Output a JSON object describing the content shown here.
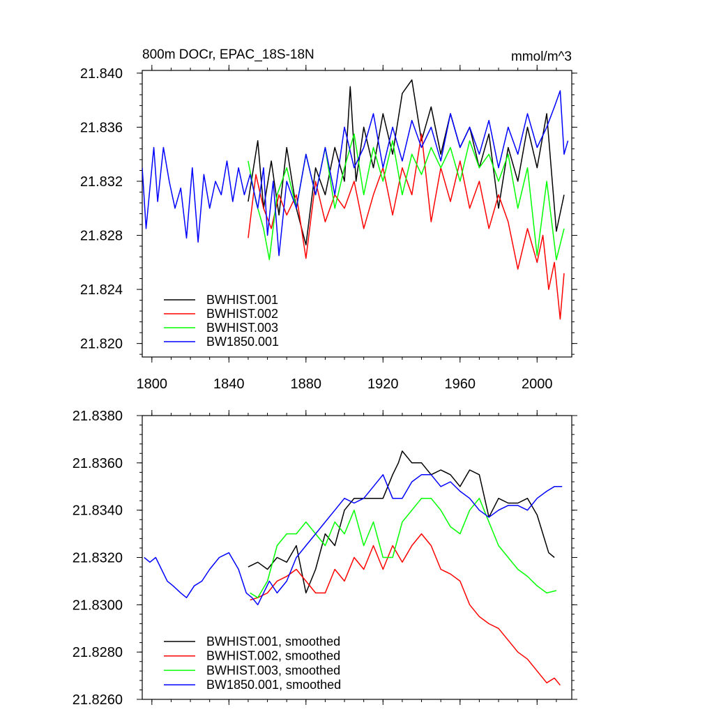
{
  "chart_data": [
    {
      "type": "line",
      "title": "800m DOCr, EPAC_18S-18N",
      "units": "mmol/m^3",
      "xlim": [
        1795,
        2018
      ],
      "ylim": [
        21.819,
        21.8402
      ],
      "xticks": [
        1800,
        1840,
        1880,
        1920,
        1960,
        2000
      ],
      "yticks": [
        21.82,
        21.824,
        21.828,
        21.832,
        21.836,
        21.84
      ],
      "ytick_labels": [
        "21.820",
        "21.824",
        "21.828",
        "21.832",
        "21.836",
        "21.840"
      ],
      "xtick_labels": [
        "1800",
        "1840",
        "1880",
        "1920",
        "1960",
        "2000"
      ],
      "legend_position": "bottom-left",
      "series": [
        {
          "name": "BWHIST.001",
          "color": "#000000",
          "x": [
            1850,
            1855,
            1858,
            1862,
            1866,
            1870,
            1875,
            1880,
            1885,
            1890,
            1895,
            1900,
            1903,
            1906,
            1910,
            1915,
            1920,
            1925,
            1930,
            1935,
            1940,
            1945,
            1950,
            1955,
            1960,
            1965,
            1970,
            1975,
            1980,
            1985,
            1990,
            1995,
            2000,
            2005,
            2010,
            2014
          ],
          "values": [
            21.8305,
            21.835,
            21.83,
            21.8335,
            21.8295,
            21.8345,
            21.83,
            21.8273,
            21.833,
            21.831,
            21.8345,
            21.832,
            21.839,
            21.832,
            21.836,
            21.833,
            21.837,
            21.834,
            21.8385,
            21.8395,
            21.835,
            21.8375,
            21.834,
            21.837,
            21.8345,
            21.836,
            21.833,
            21.8355,
            21.83,
            21.8345,
            21.832,
            21.836,
            21.833,
            21.837,
            21.8283,
            21.831
          ]
        },
        {
          "name": "BWHIST.002",
          "color": "#ff0000",
          "x": [
            1850,
            1854,
            1858,
            1862,
            1866,
            1870,
            1875,
            1880,
            1885,
            1890,
            1895,
            1900,
            1905,
            1910,
            1915,
            1920,
            1925,
            1930,
            1935,
            1940,
            1945,
            1950,
            1955,
            1960,
            1965,
            1970,
            1975,
            1980,
            1985,
            1990,
            1995,
            2000,
            2003,
            2006,
            2009,
            2012,
            2014
          ],
          "values": [
            21.8278,
            21.8325,
            21.83,
            21.8285,
            21.831,
            21.8295,
            21.831,
            21.8263,
            21.832,
            21.829,
            21.831,
            21.83,
            21.832,
            21.8285,
            21.831,
            21.833,
            21.8295,
            21.833,
            21.831,
            21.8355,
            21.829,
            21.833,
            21.8305,
            21.8335,
            21.83,
            21.832,
            21.8285,
            21.831,
            21.829,
            21.8255,
            21.8285,
            21.826,
            21.828,
            21.824,
            21.826,
            21.8218,
            21.8252
          ]
        },
        {
          "name": "BWHIST.003",
          "color": "#00ff00",
          "x": [
            1850,
            1854,
            1858,
            1861,
            1865,
            1870,
            1875,
            1880,
            1885,
            1890,
            1895,
            1900,
            1905,
            1910,
            1915,
            1920,
            1925,
            1930,
            1935,
            1940,
            1945,
            1950,
            1955,
            1960,
            1965,
            1970,
            1975,
            1980,
            1985,
            1990,
            1995,
            2000,
            2005,
            2010,
            2014
          ],
          "values": [
            21.8335,
            21.8305,
            21.8285,
            21.8262,
            21.831,
            21.833,
            21.83,
            21.834,
            21.831,
            21.8345,
            21.83,
            21.833,
            21.8355,
            21.831,
            21.8345,
            21.832,
            21.835,
            21.831,
            21.834,
            21.8325,
            21.8345,
            21.833,
            21.8345,
            21.832,
            21.835,
            21.833,
            21.834,
            21.832,
            21.834,
            21.83,
            21.833,
            21.8265,
            21.832,
            21.8262,
            21.8285
          ]
        },
        {
          "name": "BW1850.001",
          "color": "#0000ff",
          "x": [
            1795,
            1797,
            1799,
            1801,
            1803,
            1806,
            1809,
            1812,
            1815,
            1818,
            1821,
            1824,
            1827,
            1830,
            1833,
            1836,
            1839,
            1842,
            1845,
            1848,
            1851,
            1855,
            1858,
            1860,
            1863,
            1866,
            1870,
            1875,
            1880,
            1885,
            1890,
            1895,
            1900,
            1905,
            1910,
            1915,
            1920,
            1925,
            1930,
            1935,
            1940,
            1945,
            1950,
            1955,
            1960,
            1965,
            1970,
            1975,
            1980,
            1985,
            1990,
            1995,
            2000,
            2005,
            2009,
            2012,
            2014,
            2016
          ],
          "values": [
            21.833,
            21.8285,
            21.8315,
            21.8345,
            21.8305,
            21.8345,
            21.832,
            21.83,
            21.8315,
            21.8278,
            21.833,
            21.8275,
            21.8325,
            21.83,
            21.832,
            21.831,
            21.8335,
            21.8305,
            21.833,
            21.831,
            21.8325,
            21.83,
            21.833,
            21.828,
            21.832,
            21.8265,
            21.832,
            21.83,
            21.834,
            21.831,
            21.8345,
            21.831,
            21.836,
            21.833,
            21.8345,
            21.837,
            21.833,
            21.836,
            21.8335,
            21.8365,
            21.8345,
            21.836,
            21.8335,
            21.837,
            21.8345,
            21.836,
            21.834,
            21.8365,
            21.833,
            21.836,
            21.834,
            21.837,
            21.8345,
            21.836,
            21.8375,
            21.8387,
            21.834,
            21.835
          ]
        }
      ]
    },
    {
      "type": "line",
      "title": "",
      "xlim": [
        1795,
        2018
      ],
      "ylim": [
        21.826,
        21.838
      ],
      "xticks": [
        1800,
        1840,
        1880,
        1920,
        1960,
        2000
      ],
      "yticks": [
        21.826,
        21.828,
        21.83,
        21.832,
        21.834,
        21.836,
        21.838
      ],
      "ytick_labels": [
        "21.8260",
        "21.8280",
        "21.8300",
        "21.8320",
        "21.8340",
        "21.8360",
        "21.8380"
      ],
      "legend_position": "bottom-left",
      "series": [
        {
          "name": "BWHIST.001, smoothed",
          "color": "#000000",
          "x": [
            1850,
            1855,
            1860,
            1865,
            1870,
            1875,
            1880,
            1885,
            1890,
            1895,
            1900,
            1905,
            1910,
            1915,
            1920,
            1925,
            1928,
            1930,
            1935,
            1940,
            1945,
            1950,
            1955,
            1960,
            1965,
            1970,
            1975,
            1980,
            1985,
            1990,
            1995,
            2000,
            2003,
            2006,
            2009
          ],
          "values": [
            21.8316,
            21.8318,
            21.8315,
            21.832,
            21.8318,
            21.8325,
            21.8305,
            21.8315,
            21.833,
            21.8325,
            21.834,
            21.8345,
            21.8345,
            21.8345,
            21.8345,
            21.8355,
            21.836,
            21.8365,
            21.836,
            21.836,
            21.8355,
            21.8357,
            21.8355,
            21.835,
            21.8357,
            21.8355,
            21.8337,
            21.8345,
            21.8343,
            21.8343,
            21.8345,
            21.8338,
            21.833,
            21.8322,
            21.832
          ]
        },
        {
          "name": "BWHIST.002, smoothed",
          "color": "#ff0000",
          "x": [
            1851,
            1855,
            1860,
            1865,
            1870,
            1875,
            1880,
            1885,
            1890,
            1895,
            1900,
            1905,
            1910,
            1915,
            1920,
            1925,
            1930,
            1935,
            1940,
            1945,
            1950,
            1955,
            1960,
            1965,
            1970,
            1975,
            1980,
            1985,
            1990,
            1995,
            2000,
            2005,
            2009,
            2012
          ],
          "values": [
            21.8302,
            21.8303,
            21.8305,
            21.831,
            21.8312,
            21.8315,
            21.831,
            21.8305,
            21.8305,
            21.8315,
            21.831,
            21.832,
            21.8315,
            21.8325,
            21.8315,
            21.8325,
            21.8318,
            21.8325,
            21.833,
            21.8325,
            21.8315,
            21.8313,
            21.831,
            21.83,
            21.8295,
            21.8292,
            21.829,
            21.8285,
            21.828,
            21.8277,
            21.8272,
            21.8267,
            21.8269,
            21.8266
          ]
        },
        {
          "name": "BWHIST.003, smoothed",
          "color": "#00ff00",
          "x": [
            1851,
            1855,
            1860,
            1865,
            1870,
            1875,
            1880,
            1885,
            1890,
            1895,
            1900,
            1905,
            1910,
            1915,
            1920,
            1925,
            1930,
            1935,
            1940,
            1945,
            1950,
            1955,
            1960,
            1965,
            1970,
            1975,
            1980,
            1985,
            1990,
            1995,
            2000,
            2005,
            2010
          ],
          "values": [
            21.8305,
            21.8303,
            21.831,
            21.8325,
            21.833,
            21.833,
            21.8335,
            21.833,
            21.8325,
            21.8335,
            21.833,
            21.834,
            21.8325,
            21.8335,
            21.832,
            21.832,
            21.8335,
            21.834,
            21.8345,
            21.8345,
            21.834,
            21.8333,
            21.833,
            21.834,
            21.8345,
            21.8335,
            21.8325,
            21.832,
            21.8315,
            21.8312,
            21.8308,
            21.8305,
            21.8306
          ]
        },
        {
          "name": "BW1850.001, smoothed",
          "color": "#0000ff",
          "x": [
            1796,
            1799,
            1802,
            1805,
            1808,
            1811,
            1815,
            1818,
            1822,
            1826,
            1830,
            1835,
            1840,
            1845,
            1849,
            1852,
            1855,
            1858,
            1861,
            1865,
            1870,
            1875,
            1880,
            1885,
            1890,
            1895,
            1900,
            1905,
            1910,
            1915,
            1920,
            1925,
            1930,
            1935,
            1940,
            1945,
            1950,
            1955,
            1960,
            1965,
            1970,
            1975,
            1980,
            1985,
            1990,
            1995,
            2000,
            2005,
            2009,
            2013
          ],
          "values": [
            21.832,
            21.8318,
            21.832,
            21.8315,
            21.831,
            21.8308,
            21.8305,
            21.8303,
            21.8308,
            21.831,
            21.8315,
            21.832,
            21.8322,
            21.8315,
            21.8305,
            21.8303,
            21.83,
            21.8305,
            21.831,
            21.8305,
            21.831,
            21.832,
            21.8325,
            21.833,
            21.8335,
            21.834,
            21.8345,
            21.8343,
            21.8345,
            21.835,
            21.8355,
            21.8345,
            21.8345,
            21.8352,
            21.8355,
            21.8355,
            21.835,
            21.8352,
            21.8348,
            21.8345,
            21.834,
            21.8337,
            21.834,
            21.8342,
            21.8342,
            21.834,
            21.8345,
            21.8348,
            21.835,
            21.835
          ]
        }
      ]
    }
  ]
}
